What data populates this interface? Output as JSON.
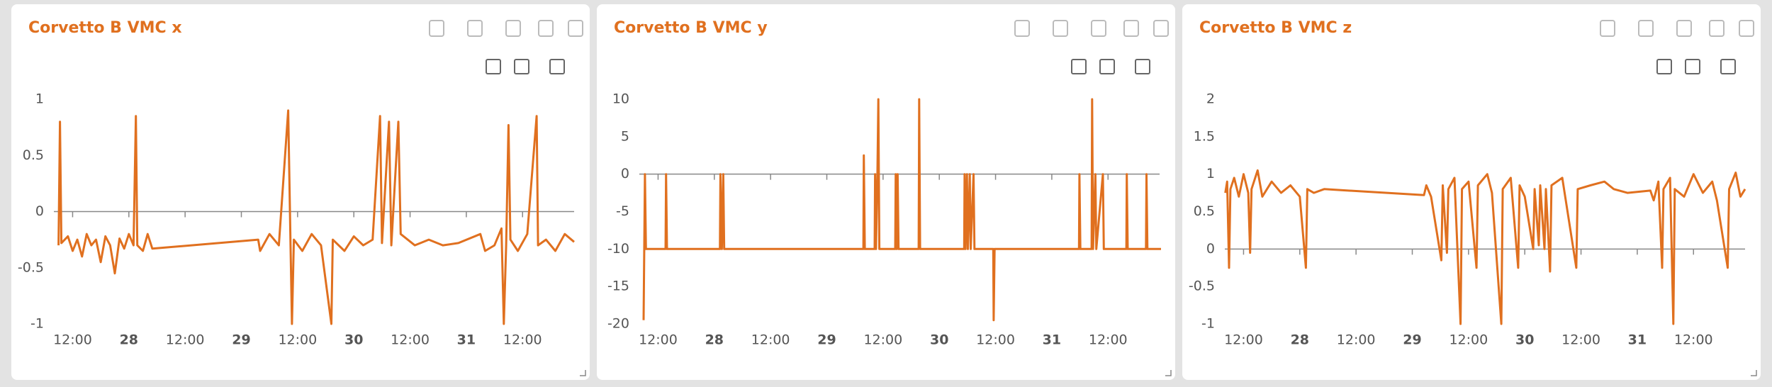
{
  "chart_data": [
    {
      "type": "line",
      "title": "Corvetto B VMC x",
      "color": "#e0701f",
      "xlim": [
        8,
        119
      ],
      "ylim": [
        -1,
        1
      ],
      "xticks": [
        {
          "value": 12,
          "label": "12:00"
        },
        {
          "value": 24,
          "label": "28"
        },
        {
          "value": 36,
          "label": "12:00"
        },
        {
          "value": 48,
          "label": "29"
        },
        {
          "value": 60,
          "label": "12:00"
        },
        {
          "value": 72,
          "label": "30"
        },
        {
          "value": 84,
          "label": "12:00"
        },
        {
          "value": 96,
          "label": "31"
        },
        {
          "value": 108,
          "label": "12:00"
        }
      ],
      "yticks": [
        -1,
        -0.5,
        0,
        0.5,
        1
      ],
      "x": [
        9,
        9.3,
        9.6,
        11,
        12,
        13,
        14,
        15,
        16,
        17,
        18,
        19,
        20,
        21,
        22,
        23,
        24,
        25,
        25.5,
        25.8,
        27,
        28,
        29,
        51.6,
        52,
        54,
        56,
        58,
        58.5,
        58.8,
        59.2,
        61,
        63,
        65,
        67.2,
        67.5,
        70,
        72,
        74,
        76,
        77.6,
        78,
        79.5,
        80,
        81.5,
        82,
        85,
        88,
        91,
        94.3,
        99,
        100,
        102,
        103.5,
        104,
        104.5,
        105,
        105.4,
        107,
        109,
        111,
        111.3,
        113,
        115,
        117,
        119
      ],
      "values": [
        -0.3,
        0.8,
        -0.28,
        -0.22,
        -0.35,
        -0.25,
        -0.4,
        -0.2,
        -0.3,
        -0.25,
        -0.45,
        -0.22,
        -0.3,
        -0.55,
        -0.24,
        -0.33,
        -0.2,
        -0.3,
        0.85,
        -0.3,
        -0.35,
        -0.2,
        -0.33,
        -0.25,
        -0.35,
        -0.2,
        -0.3,
        0.9,
        -0.3,
        -1,
        -0.25,
        -0.35,
        -0.2,
        -0.3,
        -1,
        -0.25,
        -0.35,
        -0.22,
        -0.3,
        -0.25,
        0.85,
        -0.28,
        0.8,
        -0.3,
        0.8,
        -0.2,
        -0.3,
        -0.25,
        -0.3,
        -0.28,
        -0.2,
        -0.35,
        -0.3,
        -0.15,
        -1,
        -0.3,
        0.77,
        -0.25,
        -0.35,
        -0.2,
        0.85,
        -0.3,
        -0.25,
        -0.35,
        -0.2,
        -0.27
      ]
    },
    {
      "type": "line",
      "title": "Corvetto B VMC y",
      "color": "#e0701f",
      "xlim": [
        8,
        119
      ],
      "ylim": [
        -20,
        10
      ],
      "xticks": [
        {
          "value": 12,
          "label": "12:00"
        },
        {
          "value": 24,
          "label": "28"
        },
        {
          "value": 36,
          "label": "12:00"
        },
        {
          "value": 48,
          "label": "29"
        },
        {
          "value": 60,
          "label": "12:00"
        },
        {
          "value": 72,
          "label": "30"
        },
        {
          "value": 84,
          "label": "12:00"
        },
        {
          "value": 96,
          "label": "31"
        },
        {
          "value": 108,
          "label": "12:00"
        }
      ],
      "yticks": [
        -20,
        -15,
        -10,
        -5,
        0,
        5,
        10
      ],
      "x": [
        8.9,
        9.2,
        9.4,
        13.6,
        13.7,
        13.9,
        25.2,
        25.3,
        25.6,
        25.9,
        26.1,
        55.8,
        55.9,
        56.1,
        58.2,
        58.3,
        58.5,
        58.8,
        59,
        59.2,
        62.6,
        62.7,
        62.9,
        63.1,
        63.3,
        67.6,
        67.7,
        67.9,
        77.3,
        77.4,
        77.6,
        77.9,
        78.1,
        78.5,
        78.7,
        79.3,
        79.5,
        83.5,
        83.6,
        83.8,
        101.8,
        101.9,
        102.1,
        104.5,
        104.6,
        104.8,
        105.3,
        105.5,
        106.9,
        107.1,
        111.9,
        112,
        112.2,
        116.1,
        116.2,
        116.4,
        119.3
      ],
      "values": [
        -19.5,
        0,
        -10,
        -10,
        0,
        -10,
        -10,
        0,
        -10,
        0,
        -10,
        -10,
        2.5,
        -10,
        -10,
        0,
        -10,
        0,
        10,
        -10,
        -10,
        0,
        -10,
        0,
        -10,
        -10,
        10,
        -10,
        -10,
        0,
        -10,
        0,
        -10,
        0,
        -10,
        0,
        -10,
        -10,
        -19.5,
        -10,
        -10,
        0,
        -10,
        -10,
        10,
        -10,
        0,
        -10,
        0,
        -10,
        -10,
        0,
        -10,
        -10,
        0,
        -10,
        -10
      ]
    },
    {
      "type": "line",
      "title": "Corvetto B VMC z",
      "color": "#e0701f",
      "xlim": [
        8,
        119
      ],
      "ylim": [
        -1,
        2
      ],
      "xticks": [
        {
          "value": 12,
          "label": "12:00"
        },
        {
          "value": 24,
          "label": "28"
        },
        {
          "value": 36,
          "label": "12:00"
        },
        {
          "value": 48,
          "label": "29"
        },
        {
          "value": 60,
          "label": "12:00"
        },
        {
          "value": 72,
          "label": "30"
        },
        {
          "value": 84,
          "label": "12:00"
        },
        {
          "value": 96,
          "label": "31"
        },
        {
          "value": 108,
          "label": "12:00"
        }
      ],
      "yticks": [
        -1,
        -0.5,
        0,
        0.5,
        1,
        1.5,
        2
      ],
      "x": [
        8.1,
        8.5,
        8.9,
        9.2,
        10,
        11,
        12,
        13,
        13.4,
        13.7,
        15,
        16,
        18,
        20,
        22,
        24,
        25.3,
        25.6,
        27,
        29.2,
        50.5,
        51,
        52,
        54.2,
        54.5,
        55.4,
        55.7,
        57,
        58.3,
        58.6,
        60,
        61.7,
        62,
        64,
        65,
        67,
        67.3,
        69,
        70.6,
        70.9,
        72,
        73.8,
        74.1,
        75,
        75.3,
        76.2,
        76.5,
        77.4,
        77.7,
        80,
        83,
        83.3,
        86,
        89,
        91,
        93.9,
        98.8,
        99.5,
        100.5,
        101.3,
        101.6,
        103,
        103.7,
        104,
        106,
        108,
        110,
        112,
        113,
        115.3,
        115.6,
        117,
        118,
        119
      ],
      "values": [
        0.75,
        0.9,
        -0.25,
        0.8,
        0.95,
        0.7,
        1.0,
        0.75,
        -0.05,
        0.8,
        1.05,
        0.7,
        0.9,
        0.75,
        0.85,
        0.7,
        -0.25,
        0.8,
        0.75,
        0.8,
        0.72,
        0.85,
        0.7,
        -0.15,
        0.85,
        -0.05,
        0.8,
        0.95,
        -1,
        0.8,
        0.9,
        -0.25,
        0.85,
        1.0,
        0.75,
        -1,
        0.8,
        0.95,
        -0.25,
        0.85,
        0.7,
        0,
        0.8,
        0.05,
        0.85,
        0,
        0.8,
        -0.3,
        0.85,
        0.95,
        -0.25,
        0.8,
        0.85,
        0.9,
        0.8,
        0.75,
        0.78,
        0.65,
        0.9,
        -0.25,
        0.8,
        0.95,
        -1,
        0.8,
        0.7,
        1.0,
        0.75,
        0.9,
        0.65,
        -0.25,
        0.8,
        1.02,
        0.7,
        0.8
      ]
    }
  ]
}
